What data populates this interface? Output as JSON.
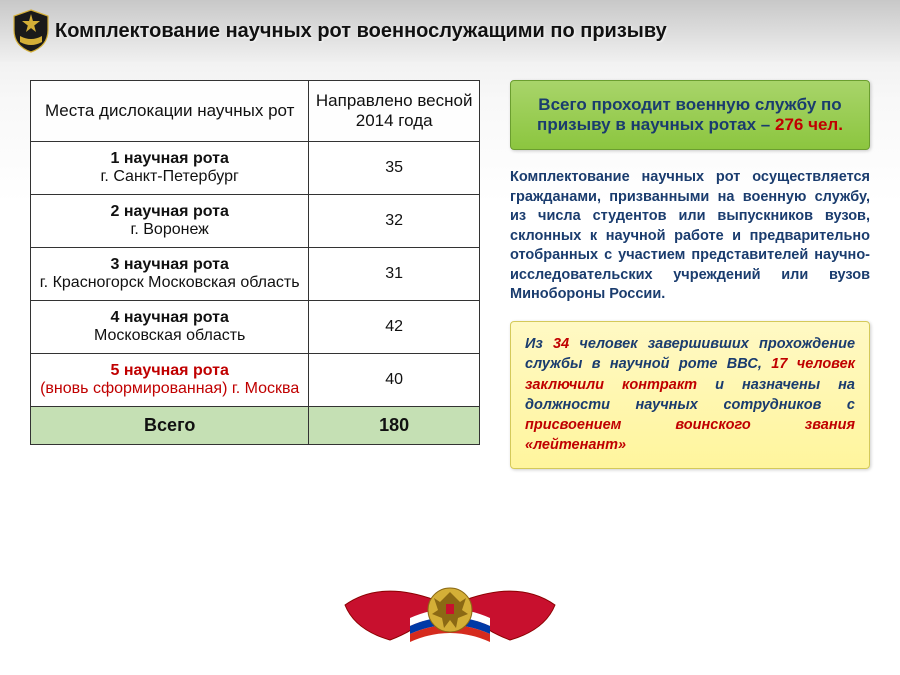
{
  "title": "Комплектование научных рот военнослужащими по призыву",
  "table": {
    "col1_header": "Места дислокации научных рот",
    "col2_header": "Направлено весной 2014 года",
    "rows": [
      {
        "name": "1 научная рота",
        "city": "г. Санкт-Петербург",
        "value": "35",
        "red": false
      },
      {
        "name": "2 научная рота",
        "city": "г. Воронеж",
        "value": "32",
        "red": false
      },
      {
        "name": "3 научная рота",
        "city": "г. Красногорск Московская область",
        "value": "31",
        "red": false
      },
      {
        "name": "4 научная рота",
        "city": "Московская область",
        "value": "42",
        "red": false
      },
      {
        "name": "5 научная рота",
        "city": "(вновь сформированная) г. Москва",
        "value": "40",
        "red": true
      }
    ],
    "total_label": "Всего",
    "total_value": "180"
  },
  "green_box": {
    "line1": "Всего проходит военную службу по призыву в научных ротах – ",
    "highlight": "276 чел."
  },
  "para": "Комплектование научных рот осуществляется гражданами, призванными на военную службу, из числа студентов или выпускников вузов, склонных к научной работе и предварительно отобранных с участием представителей научно-исследовательских учреждений или вузов Минобороны России.",
  "yellow_box": {
    "p1a": "Из ",
    "h1": "34",
    "p1b": " человек завершивших прохождение службы в научной роте ВВС, ",
    "h2": "17 человек заключили контракт",
    "p2": " и назначены на должности научных сотрудников с ",
    "h3": "присвоением воинского звания «лейтенант»"
  },
  "colors": {
    "accent_red": "#c00000",
    "text_blue": "#1a3c6e",
    "green_row": "#c5e0b4",
    "emblem_gold": "#d4af37"
  }
}
